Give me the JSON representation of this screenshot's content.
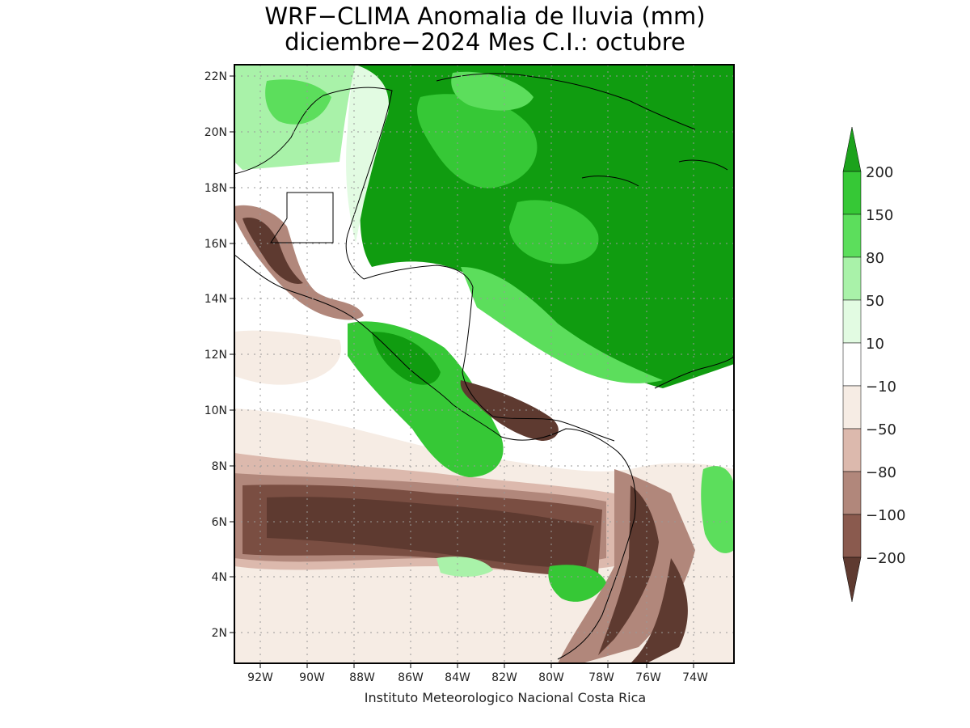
{
  "title": {
    "line1": "WRF−CLIMA Anomalia de lluvia (mm)",
    "line2": "diciembre−2024 Mes C.I.: octubre"
  },
  "credit": "Instituto Meteorologico Nacional Costa Rica",
  "axes": {
    "lat_labels": [
      "22N",
      "20N",
      "18N",
      "16N",
      "14N",
      "12N",
      "10N",
      "8N",
      "6N",
      "4N",
      "2N"
    ],
    "lon_labels": [
      "92W",
      "90W",
      "88W",
      "86W",
      "84W",
      "82W",
      "80W",
      "78W",
      "76W",
      "74W"
    ]
  },
  "legend": {
    "labels": [
      "200",
      "150",
      "80",
      "50",
      "10",
      "−10",
      "−50",
      "−80",
      "−100",
      "−200"
    ],
    "colors": [
      "#1ca21c",
      "#36c836",
      "#5cde5c",
      "#a9f2a9",
      "#e2fbe2",
      "#ffffff",
      "#f6ece4",
      "#dcb9ad",
      "#b1877b",
      "#8a5a4e",
      "#5e3a30"
    ]
  },
  "map_colors": {
    "strong_wet": "#109c10",
    "wet": "#36c836",
    "mid_wet": "#5cde5c",
    "light_wet": "#a9f2a9",
    "faint_wet": "#e2fbe2",
    "neutral": "#ffffff",
    "faint_dry": "#f6ece4",
    "light_dry": "#dcb9ad",
    "dry": "#b1877b",
    "strong_dry": "#7a4e42",
    "extreme_dry": "#5e3a30"
  }
}
